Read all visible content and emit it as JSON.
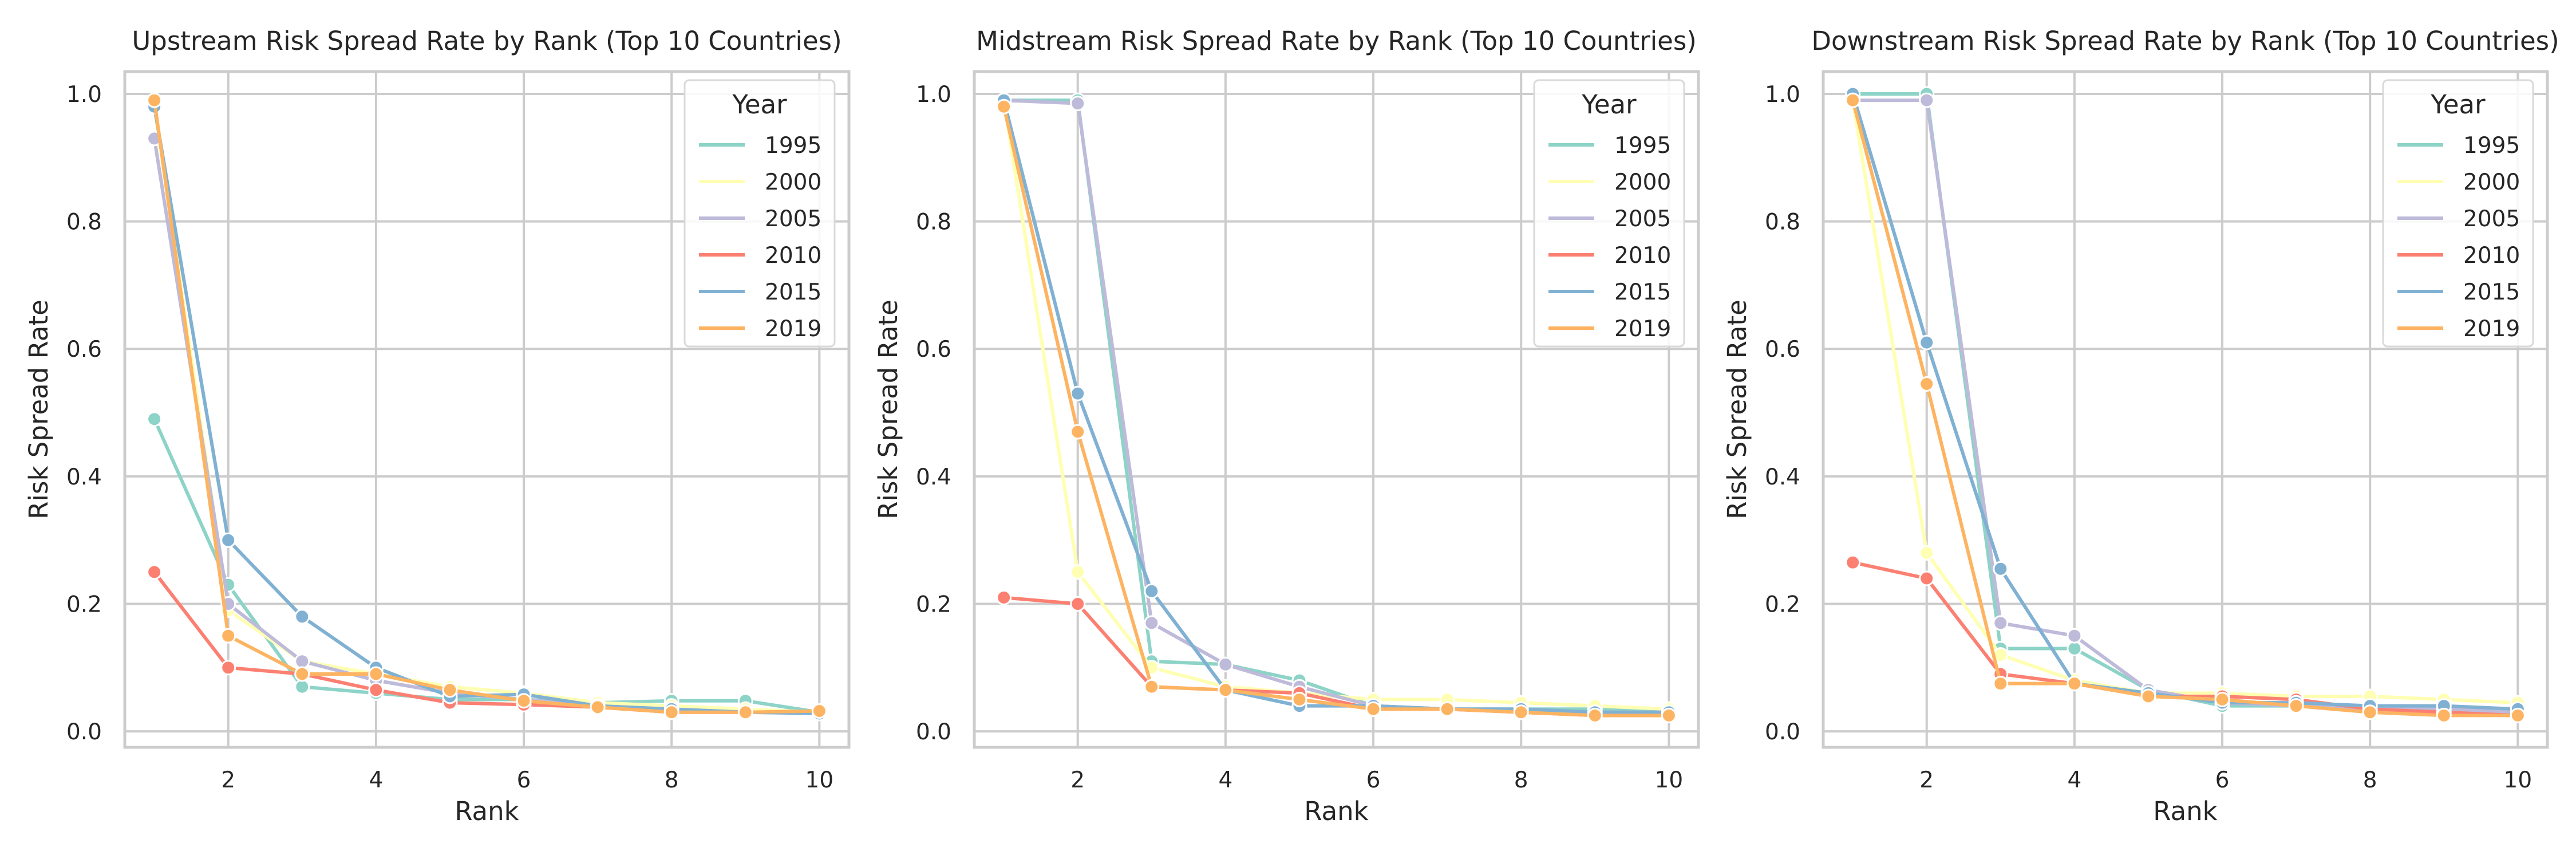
{
  "colors": {
    "1995": "#8dd3c7",
    "2000": "#ffffb3",
    "2005": "#bebada",
    "2010": "#fb8072",
    "2015": "#80b1d3",
    "2019": "#fdb462"
  },
  "chart_data": [
    {
      "type": "line",
      "title": "Upstream Risk Spread Rate by Rank (Top 10 Countries)",
      "xlabel": "Rank",
      "ylabel": "Risk Spread Rate",
      "xlim": [
        0.6,
        10.4
      ],
      "ylim": [
        -0.025,
        1.035
      ],
      "xticks": [
        "2",
        "4",
        "6",
        "8",
        "10"
      ],
      "yticks": [
        "0.0",
        "0.2",
        "0.4",
        "0.6",
        "0.8",
        "1.0"
      ],
      "legend_title": "Year",
      "legend_position": "upper-right",
      "grid": true,
      "x": [
        1,
        2,
        3,
        4,
        5,
        6,
        7,
        8,
        9,
        10
      ],
      "series": [
        {
          "name": "1995",
          "values": [
            0.49,
            0.23,
            0.07,
            0.06,
            0.05,
            0.05,
            0.045,
            0.048,
            0.048,
            0.03
          ]
        },
        {
          "name": "2000",
          "values": [
            0.98,
            0.19,
            0.11,
            0.09,
            0.07,
            0.06,
            0.045,
            0.04,
            0.035,
            0.03
          ]
        },
        {
          "name": "2005",
          "values": [
            0.93,
            0.2,
            0.11,
            0.08,
            0.06,
            0.05,
            0.04,
            0.035,
            0.03,
            0.03
          ]
        },
        {
          "name": "2010",
          "values": [
            0.25,
            0.1,
            0.09,
            0.065,
            0.045,
            0.042,
            0.038,
            0.03,
            0.03,
            0.03
          ]
        },
        {
          "name": "2015",
          "values": [
            0.98,
            0.3,
            0.18,
            0.1,
            0.055,
            0.058,
            0.04,
            0.035,
            0.03,
            0.028
          ]
        },
        {
          "name": "2019",
          "values": [
            0.99,
            0.15,
            0.09,
            0.09,
            0.065,
            0.048,
            0.038,
            0.03,
            0.03,
            0.032
          ]
        }
      ]
    },
    {
      "type": "line",
      "title": "Midstream Risk Spread Rate by Rank (Top 10 Countries)",
      "xlabel": "Rank",
      "ylabel": "Risk Spread Rate",
      "xlim": [
        0.6,
        10.4
      ],
      "ylim": [
        -0.025,
        1.035
      ],
      "xticks": [
        "2",
        "4",
        "6",
        "8",
        "10"
      ],
      "yticks": [
        "0.0",
        "0.2",
        "0.4",
        "0.6",
        "0.8",
        "1.0"
      ],
      "legend_title": "Year",
      "legend_position": "upper-right",
      "grid": true,
      "x": [
        1,
        2,
        3,
        4,
        5,
        6,
        7,
        8,
        9,
        10
      ],
      "series": [
        {
          "name": "1995",
          "values": [
            0.99,
            0.99,
            0.11,
            0.105,
            0.08,
            0.04,
            0.035,
            0.035,
            0.035,
            0.035
          ]
        },
        {
          "name": "2000",
          "values": [
            0.99,
            0.25,
            0.1,
            0.07,
            0.06,
            0.05,
            0.05,
            0.045,
            0.04,
            0.035
          ]
        },
        {
          "name": "2005",
          "values": [
            0.99,
            0.985,
            0.17,
            0.105,
            0.07,
            0.04,
            0.035,
            0.03,
            0.03,
            0.03
          ]
        },
        {
          "name": "2010",
          "values": [
            0.21,
            0.2,
            0.07,
            0.065,
            0.06,
            0.035,
            0.035,
            0.03,
            0.025,
            0.025
          ]
        },
        {
          "name": "2015",
          "values": [
            0.99,
            0.53,
            0.22,
            0.065,
            0.04,
            0.04,
            0.035,
            0.035,
            0.03,
            0.03
          ]
        },
        {
          "name": "2019",
          "values": [
            0.98,
            0.47,
            0.07,
            0.065,
            0.05,
            0.035,
            0.035,
            0.03,
            0.025,
            0.025
          ]
        }
      ]
    },
    {
      "type": "line",
      "title": "Downstream Risk Spread Rate by Rank (Top 10 Countries)",
      "xlabel": "Rank",
      "ylabel": "Risk Spread Rate",
      "xlim": [
        0.6,
        10.4
      ],
      "ylim": [
        -0.025,
        1.035
      ],
      "xticks": [
        "2",
        "4",
        "6",
        "8",
        "10"
      ],
      "yticks": [
        "0.0",
        "0.2",
        "0.4",
        "0.6",
        "0.8",
        "1.0"
      ],
      "legend_title": "Year",
      "legend_position": "upper-right",
      "grid": true,
      "x": [
        1,
        2,
        3,
        4,
        5,
        6,
        7,
        8,
        9,
        10
      ],
      "series": [
        {
          "name": "1995",
          "values": [
            1.0,
            1.0,
            0.13,
            0.13,
            0.065,
            0.04,
            0.04,
            0.035,
            0.035,
            0.03
          ]
        },
        {
          "name": "2000",
          "values": [
            0.99,
            0.28,
            0.12,
            0.08,
            0.06,
            0.06,
            0.055,
            0.055,
            0.05,
            0.045
          ]
        },
        {
          "name": "2005",
          "values": [
            0.99,
            0.99,
            0.17,
            0.15,
            0.065,
            0.045,
            0.04,
            0.035,
            0.035,
            0.03
          ]
        },
        {
          "name": "2010",
          "values": [
            0.265,
            0.24,
            0.09,
            0.075,
            0.055,
            0.055,
            0.05,
            0.035,
            0.03,
            0.025
          ]
        },
        {
          "name": "2015",
          "values": [
            1.0,
            0.61,
            0.255,
            0.075,
            0.06,
            0.045,
            0.045,
            0.04,
            0.04,
            0.035
          ]
        },
        {
          "name": "2019",
          "values": [
            0.99,
            0.545,
            0.075,
            0.075,
            0.055,
            0.05,
            0.04,
            0.03,
            0.025,
            0.025
          ]
        }
      ]
    }
  ]
}
